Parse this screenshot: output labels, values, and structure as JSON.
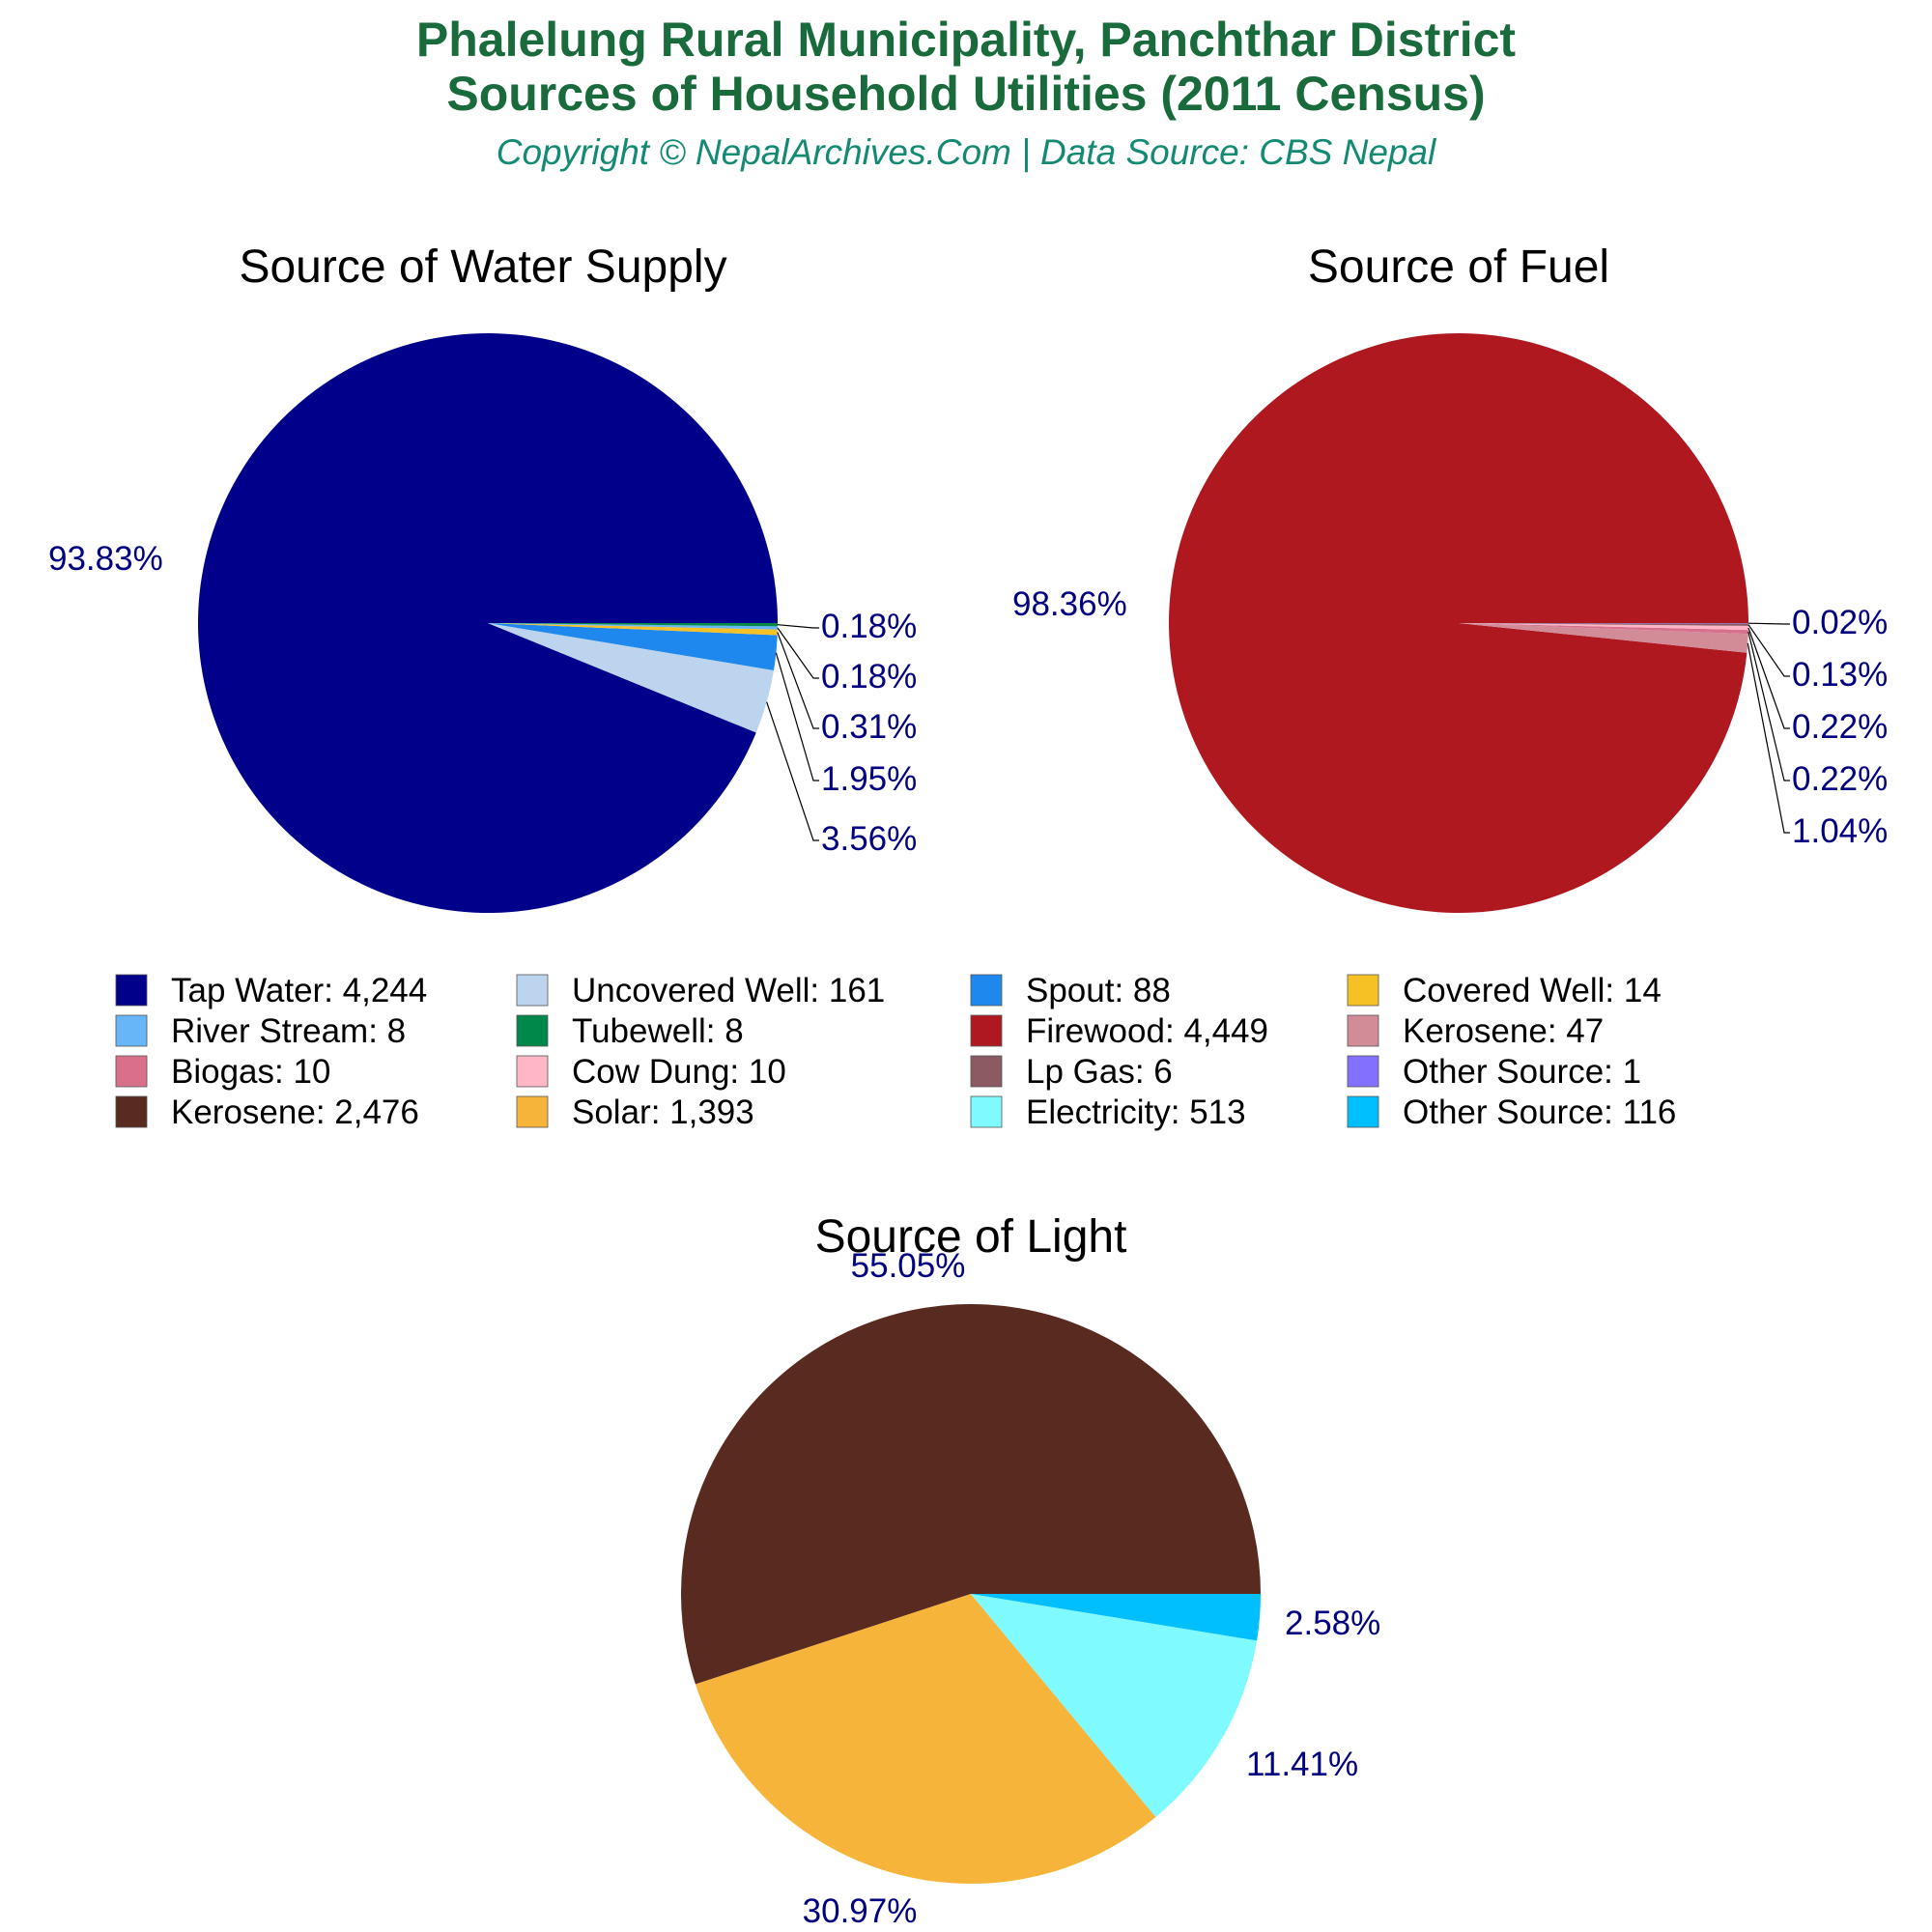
{
  "header": {
    "title_line1": "Phalelung Rural Municipality, Panchthar District",
    "title_line2": "Sources of Household Utilities (2011 Census)",
    "subtitle": "Copyright © NepalArchives.Com | Data Source: CBS Nepal"
  },
  "chart_data": [
    {
      "type": "pie",
      "title": "Source of Water Supply",
      "slices": [
        {
          "label": "Tap Water",
          "value": 4244,
          "percent_label": "93.83%",
          "color": "#00008b"
        },
        {
          "label": "Uncovered Well",
          "value": 161,
          "percent_label": "3.56%",
          "color": "#bcd4ee"
        },
        {
          "label": "Spout",
          "value": 88,
          "percent_label": "1.95%",
          "color": "#1e88ee"
        },
        {
          "label": "Covered Well",
          "value": 14,
          "percent_label": "0.31%",
          "color": "#f5c125"
        },
        {
          "label": "River Stream",
          "value": 8,
          "percent_label": "0.18%",
          "color": "#66b6f8"
        },
        {
          "label": "Tubewell",
          "value": 8,
          "percent_label": "0.18%",
          "color": "#00884a"
        }
      ]
    },
    {
      "type": "pie",
      "title": "Source of Fuel",
      "slices": [
        {
          "label": "Firewood",
          "value": 4449,
          "percent_label": "98.36%",
          "color": "#b01820"
        },
        {
          "label": "Kerosene",
          "value": 47,
          "percent_label": "1.04%",
          "color": "#d28c98"
        },
        {
          "label": "Biogas",
          "value": 10,
          "percent_label": "0.22%",
          "color": "#d8708c"
        },
        {
          "label": "Cow Dung",
          "value": 10,
          "percent_label": "0.22%",
          "color": "#ffb6c6"
        },
        {
          "label": "Lp Gas",
          "value": 6,
          "percent_label": "0.13%",
          "color": "#8b5a62"
        },
        {
          "label": "Other Source",
          "value": 1,
          "percent_label": "0.02%",
          "color": "#8470ff"
        }
      ]
    },
    {
      "type": "pie",
      "title": "Source of Light",
      "slices": [
        {
          "label": "Kerosene",
          "value": 2476,
          "percent_label": "55.05%",
          "color": "#582a20"
        },
        {
          "label": "Solar",
          "value": 1393,
          "percent_label": "30.97%",
          "color": "#f6b53a"
        },
        {
          "label": "Electricity",
          "value": 513,
          "percent_label": "11.41%",
          "color": "#7ffaff"
        },
        {
          "label": "Other Source",
          "value": 116,
          "percent_label": "2.58%",
          "color": "#00bfff"
        }
      ]
    }
  ],
  "legend": {
    "items": [
      {
        "text": "Tap Water: 4,244",
        "color": "#00008b"
      },
      {
        "text": "Uncovered Well: 161",
        "color": "#bcd4ee"
      },
      {
        "text": "Spout: 88",
        "color": "#1e88ee"
      },
      {
        "text": "Covered Well: 14",
        "color": "#f5c125"
      },
      {
        "text": "River Stream: 8",
        "color": "#66b6f8"
      },
      {
        "text": "Tubewell: 8",
        "color": "#00884a"
      },
      {
        "text": "Firewood: 4,449",
        "color": "#b01820"
      },
      {
        "text": "Kerosene: 47",
        "color": "#d28c98"
      },
      {
        "text": "Biogas: 10",
        "color": "#d8708c"
      },
      {
        "text": "Cow Dung: 10",
        "color": "#ffb6c6"
      },
      {
        "text": "Lp Gas: 6",
        "color": "#8b5a62"
      },
      {
        "text": "Other Source: 1",
        "color": "#8470ff"
      },
      {
        "text": "Kerosene: 2,476",
        "color": "#582a20"
      },
      {
        "text": "Solar: 1,393",
        "color": "#f6b53a"
      },
      {
        "text": "Electricity: 513",
        "color": "#7ffaff"
      },
      {
        "text": "Other Source: 116",
        "color": "#00bfff"
      }
    ]
  }
}
